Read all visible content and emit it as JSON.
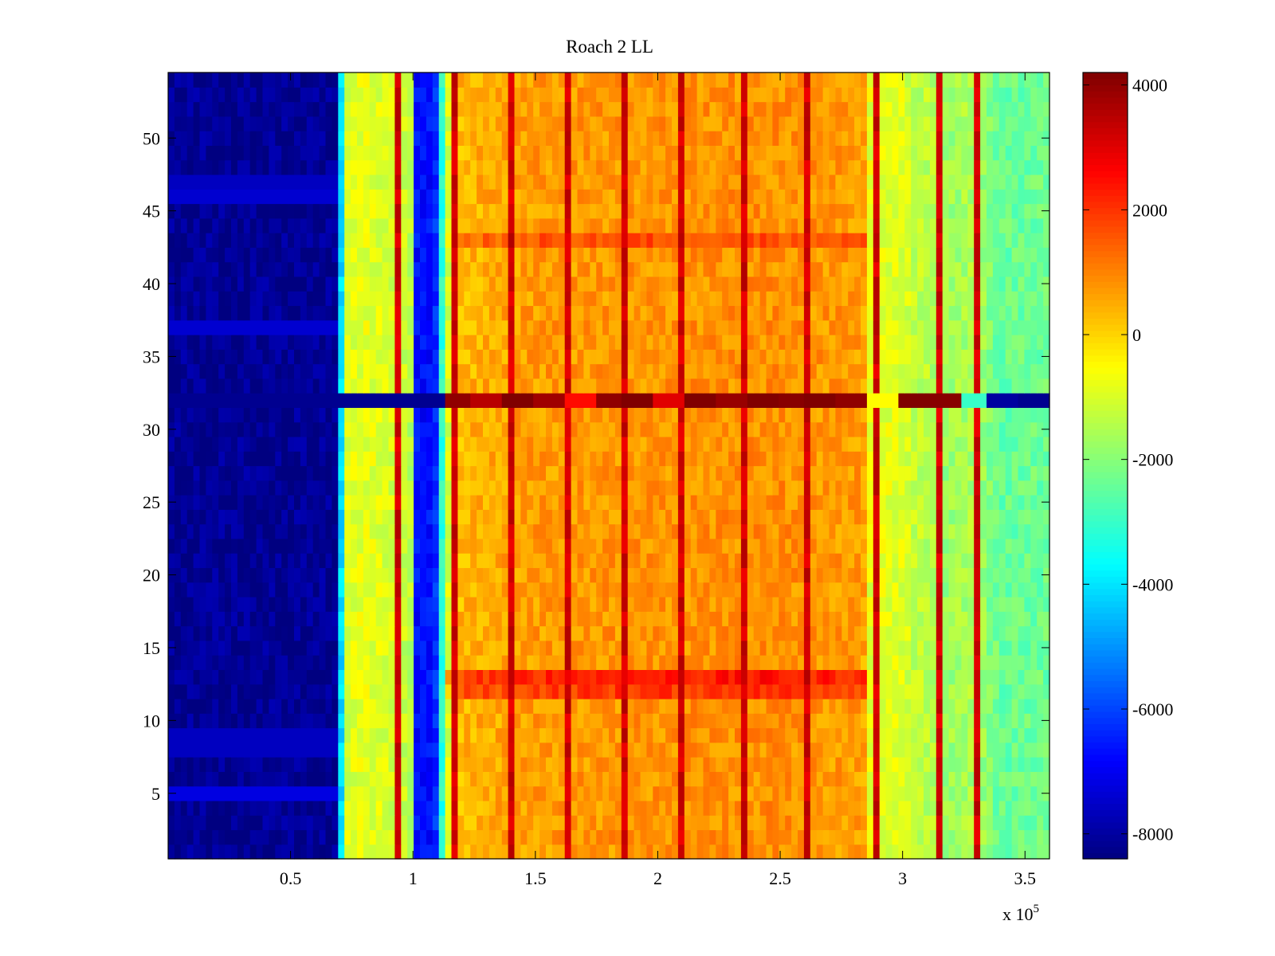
{
  "chart_data": {
    "type": "heatmap",
    "title": "Roach 2 LL",
    "xlabel": "",
    "ylabel": "",
    "x_multiplier_label": "x 10",
    "x_multiplier_exponent": "5",
    "xlim": [
      0,
      3.6
    ],
    "ylim": [
      0.5,
      54.5
    ],
    "x_ticks": [
      0.5,
      1,
      1.5,
      2,
      2.5,
      3,
      3.5
    ],
    "x_tick_labels": [
      "0.5",
      "1",
      "1.5",
      "2",
      "2.5",
      "3",
      "3.5"
    ],
    "y_ticks": [
      5,
      10,
      15,
      20,
      25,
      30,
      35,
      40,
      45,
      50
    ],
    "y_tick_labels": [
      "5",
      "10",
      "15",
      "20",
      "25",
      "30",
      "35",
      "40",
      "45",
      "50"
    ],
    "colormap": "jet",
    "clim": [
      -8400,
      4200
    ],
    "colorbar_ticks": [
      4000,
      2000,
      0,
      -2000,
      -4000,
      -6000,
      -8000
    ],
    "colorbar_tick_labels": [
      "4000",
      "2000",
      "0",
      "-2000",
      "-4000",
      "-6000",
      "-8000"
    ],
    "rows": 54,
    "column_profile": {
      "x": [
        0,
        0.69,
        0.72,
        0.8,
        0.95,
        0.99,
        1.0,
        1.02,
        1.09,
        1.12,
        1.16,
        1.3,
        1.5,
        2.0,
        2.5,
        2.84,
        2.86,
        3.0,
        3.05,
        3.12,
        3.16,
        3.22,
        3.3,
        3.37,
        3.4,
        3.6
      ],
      "value": [
        -8200,
        -8200,
        -1000,
        -800,
        -1100,
        -1400,
        -6200,
        -6800,
        -6600,
        -3000,
        300,
        500,
        700,
        800,
        850,
        700,
        -800,
        -900,
        -1300,
        -1400,
        -1800,
        -1700,
        -1500,
        -2200,
        -2400,
        -2300
      ]
    },
    "dark_vertical_lines_x": [
      0.95,
      1.16,
      1.4,
      1.64,
      1.87,
      2.1,
      2.36,
      2.6,
      2.9,
      3.15,
      3.3
    ],
    "anomalous_row": {
      "row": 32,
      "values_right_of_1.1": [
        4000,
        3500,
        4200,
        3800,
        2500,
        4000,
        4200,
        3000,
        4200,
        3900,
        4200,
        4100,
        4200,
        4000,
        -500,
        4200,
        4100,
        -3000,
        -8000,
        -8200
      ],
      "value_left_of_1.1": -8200
    },
    "highlighted_rows": [
      {
        "row": 5,
        "value_left": -7200
      },
      {
        "row": 8,
        "value_left": -7600
      },
      {
        "row": 9,
        "value_left": -7600
      },
      {
        "row": 12,
        "value_right_boost": 1200
      },
      {
        "row": 13,
        "value_right_boost": 1500
      },
      {
        "row": 37,
        "value_left": -7400
      },
      {
        "row": 43,
        "value_right_boost": 900
      },
      {
        "row": 46,
        "value_left": -7400
      },
      {
        "row": 47,
        "value_left": -7600
      }
    ]
  }
}
